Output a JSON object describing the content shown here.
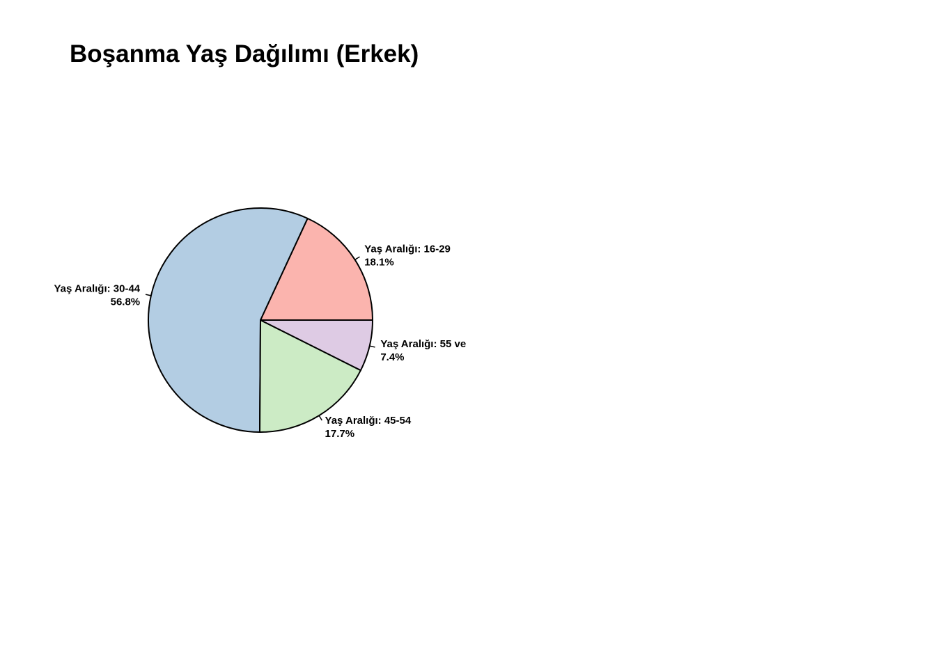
{
  "chart_data": {
    "type": "pie",
    "title": "Boşanma Yaş Dağılımı (Erkek)",
    "start_angle_deg": 0,
    "direction": "counterclockwise",
    "legend": "none",
    "slices": [
      {
        "label": "Yaş Aralığı: 16-29",
        "percent_label": "18.1%",
        "value": 18.1,
        "color": "#FBB4AE"
      },
      {
        "label": "Yaş Aralığı: 30-44",
        "percent_label": "56.8%",
        "value": 56.8,
        "color": "#B3CDE3"
      },
      {
        "label": "Yaş Aralığı: 45-54",
        "percent_label": "17.7%",
        "value": 17.7,
        "color": "#CCEBC5"
      },
      {
        "label": "Yaş Aralığı: 55 ve",
        "percent_label": "7.4%",
        "value": 7.4,
        "color": "#DECBE4"
      }
    ]
  }
}
